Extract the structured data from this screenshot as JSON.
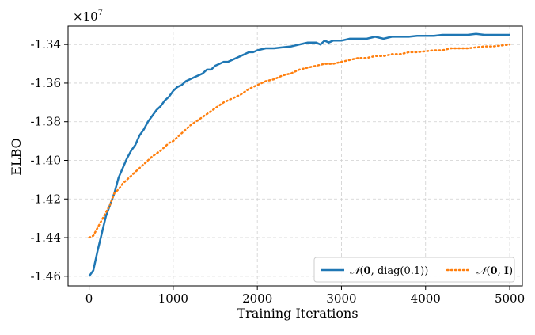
{
  "chart_data": {
    "type": "line",
    "xlabel": "Training Iterations",
    "ylabel": "ELBO",
    "scale_factor_label": "×10",
    "scale_factor_exponent": "7",
    "xlim": [
      -250,
      5150
    ],
    "ylim": [
      -14.65,
      -13.305
    ],
    "x_ticks": [
      0,
      1000,
      2000,
      3000,
      4000,
      5000
    ],
    "x_tick_labels": [
      "0",
      "1000",
      "2000",
      "3000",
      "4000",
      "5000"
    ],
    "y_ticks": [
      -14.6,
      -14.4,
      -14.2,
      -14.0,
      -13.8,
      -13.6,
      -13.4
    ],
    "y_tick_labels": [
      "-1.46",
      "-1.44",
      "-1.42",
      "-1.40",
      "-1.38",
      "-1.36",
      "-1.34"
    ],
    "grid": true,
    "legend_position": "bottom-right",
    "series": [
      {
        "name": "N(0, diag(0.1))",
        "color": "#1f77b4",
        "style": "solid",
        "x": [
          0,
          50,
          100,
          150,
          200,
          250,
          300,
          350,
          400,
          450,
          500,
          550,
          600,
          650,
          700,
          750,
          800,
          850,
          900,
          950,
          1000,
          1050,
          1100,
          1150,
          1200,
          1250,
          1300,
          1350,
          1400,
          1450,
          1500,
          1550,
          1600,
          1650,
          1700,
          1750,
          1800,
          1850,
          1900,
          1950,
          2000,
          2100,
          2200,
          2300,
          2400,
          2500,
          2600,
          2700,
          2750,
          2800,
          2850,
          2900,
          3000,
          3100,
          3200,
          3300,
          3400,
          3500,
          3600,
          3700,
          3800,
          3900,
          4000,
          4100,
          4200,
          4300,
          4400,
          4500,
          4600,
          4700,
          4800,
          4900,
          5000
        ],
        "y": [
          -14.6,
          -14.57,
          -14.47,
          -14.38,
          -14.29,
          -14.23,
          -14.17,
          -14.09,
          -14.04,
          -13.99,
          -13.95,
          -13.92,
          -13.87,
          -13.84,
          -13.8,
          -13.77,
          -13.74,
          -13.72,
          -13.69,
          -13.67,
          -13.64,
          -13.62,
          -13.61,
          -13.59,
          -13.58,
          -13.57,
          -13.56,
          -13.55,
          -13.53,
          -13.53,
          -13.51,
          -13.5,
          -13.49,
          -13.49,
          -13.48,
          -13.47,
          -13.46,
          -13.45,
          -13.44,
          -13.44,
          -13.43,
          -13.42,
          -13.42,
          -13.415,
          -13.41,
          -13.4,
          -13.39,
          -13.39,
          -13.4,
          -13.38,
          -13.39,
          -13.38,
          -13.38,
          -13.37,
          -13.37,
          -13.37,
          -13.36,
          -13.37,
          -13.36,
          -13.36,
          -13.36,
          -13.355,
          -13.355,
          -13.355,
          -13.35,
          -13.35,
          -13.35,
          -13.35,
          -13.345,
          -13.35,
          -13.35,
          -13.35,
          -13.35
        ]
      },
      {
        "name": "N(0, I)",
        "color": "#ff7f0e",
        "style": "dotted",
        "x": [
          0,
          50,
          100,
          150,
          200,
          250,
          300,
          350,
          400,
          450,
          500,
          550,
          600,
          650,
          700,
          750,
          800,
          850,
          900,
          950,
          1000,
          1100,
          1200,
          1300,
          1400,
          1500,
          1600,
          1700,
          1800,
          1900,
          2000,
          2100,
          2200,
          2300,
          2400,
          2500,
          2600,
          2700,
          2800,
          2900,
          3000,
          3100,
          3200,
          3300,
          3400,
          3500,
          3600,
          3700,
          3800,
          3900,
          4000,
          4100,
          4200,
          4300,
          4400,
          4500,
          4600,
          4700,
          4800,
          4900,
          5000
        ],
        "y": [
          -14.4,
          -14.39,
          -14.35,
          -14.31,
          -14.27,
          -14.23,
          -14.17,
          -14.15,
          -14.12,
          -14.1,
          -14.08,
          -14.06,
          -14.04,
          -14.02,
          -14.0,
          -13.98,
          -13.965,
          -13.95,
          -13.93,
          -13.91,
          -13.9,
          -13.86,
          -13.82,
          -13.79,
          -13.76,
          -13.73,
          -13.7,
          -13.68,
          -13.66,
          -13.63,
          -13.61,
          -13.59,
          -13.58,
          -13.56,
          -13.55,
          -13.53,
          -13.52,
          -13.51,
          -13.5,
          -13.5,
          -13.49,
          -13.48,
          -13.47,
          -13.47,
          -13.46,
          -13.46,
          -13.45,
          -13.45,
          -13.44,
          -13.44,
          -13.435,
          -13.43,
          -13.43,
          -13.42,
          -13.42,
          -13.42,
          -13.415,
          -13.41,
          -13.41,
          -13.405,
          -13.4
        ]
      }
    ]
  }
}
